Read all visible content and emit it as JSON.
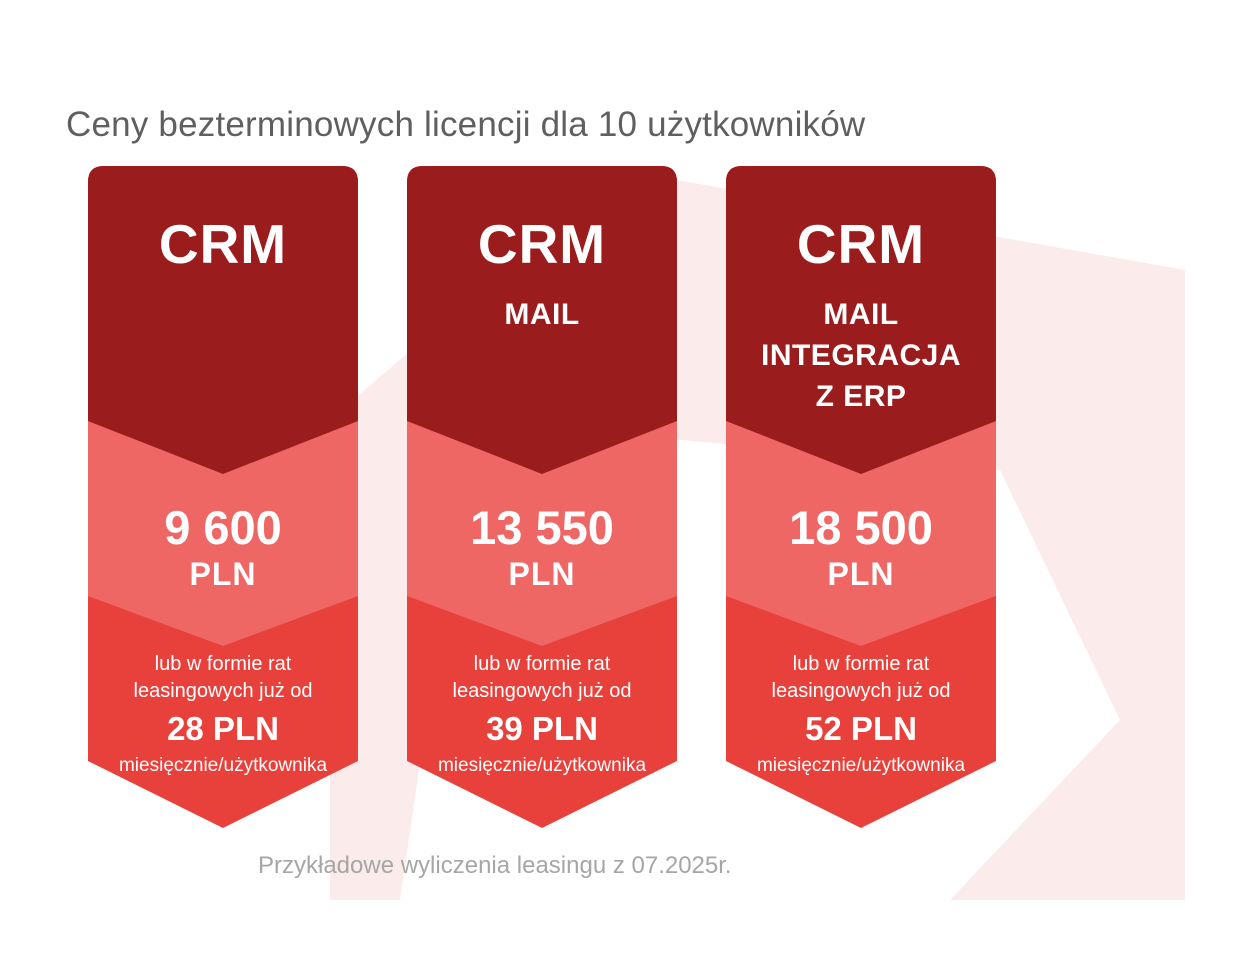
{
  "title": "Ceny bezterminowych licencji dla 10 użytkowników",
  "colors": {
    "dark_red": "#9b1c1c",
    "mid_red": "#ee6764",
    "light_red": "#e8403b",
    "watermark": "#fbeceb",
    "title_text": "#5f5f5f",
    "footnote_text": "#a6a6a6"
  },
  "cards": [
    {
      "product": "CRM",
      "features": [],
      "price_amount": "9 600",
      "price_currency": "PLN",
      "lease_text_1": "lub w formie rat",
      "lease_text_2": "leasingowych już od",
      "lease_amount": "28 PLN",
      "lease_unit": "miesięcznie/użytkownika"
    },
    {
      "product": "CRM",
      "features": [
        "MAIL"
      ],
      "price_amount": "13 550",
      "price_currency": "PLN",
      "lease_text_1": "lub w formie rat",
      "lease_text_2": "leasingowych już od",
      "lease_amount": "39 PLN",
      "lease_unit": "miesięcznie/użytkownika"
    },
    {
      "product": "CRM",
      "features": [
        "MAIL",
        "INTEGRACJA",
        "Z ERP"
      ],
      "price_amount": "18 500",
      "price_currency": "PLN",
      "lease_text_1": "lub w formie rat",
      "lease_text_2": "leasingowych już od",
      "lease_amount": "52 PLN",
      "lease_unit": "miesięcznie/użytkownika"
    }
  ],
  "footnote": "Przykładowe wyliczenia leasingu z 07.2025r."
}
